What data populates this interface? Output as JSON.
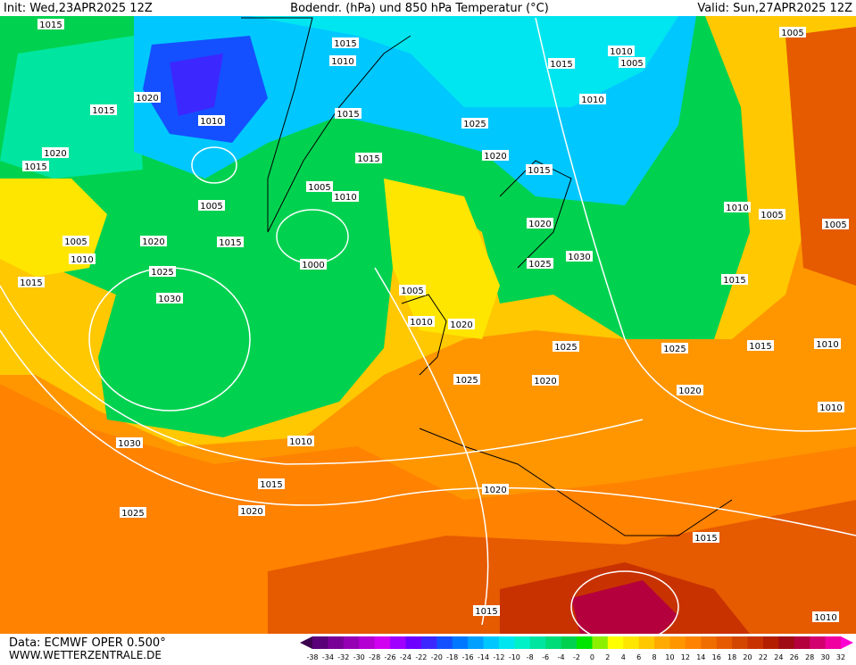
{
  "header": {
    "init": "Init: Wed,23APR2025 12Z",
    "title": "Bodendr. (hPa) und 850 hPa Temperatur (°C)",
    "valid": "Valid: Sun,27APR2025 12Z"
  },
  "isobar_labels": [
    "1015",
    "1015",
    "1010",
    "1020",
    "1015",
    "1010",
    "1015",
    "1025",
    "1020",
    "1015",
    "1015",
    "1020",
    "1015",
    "1005",
    "1010",
    "1005",
    "1010",
    "1005",
    "1005",
    "1020",
    "1005",
    "1020",
    "1015",
    "1010",
    "1030",
    "1025",
    "1000",
    "1025",
    "1015",
    "1015",
    "1005",
    "1030",
    "1010",
    "1020",
    "1025",
    "1025",
    "1015",
    "1010",
    "1025",
    "1020",
    "1020",
    "1010",
    "1030",
    "1010",
    "1015",
    "1020",
    "1025",
    "1020",
    "1015",
    "1015",
    "1010",
    "1010",
    "1005",
    "1015",
    "1005",
    "1010"
  ],
  "footer": {
    "source": "Data: ECMWF OPER 0.500°",
    "site": "WWW.WETTERZENTRALE.DE"
  },
  "legend": {
    "labels": [
      -38,
      -34,
      -32,
      -30,
      -28,
      -26,
      -24,
      -22,
      -20,
      -18,
      -16,
      -14,
      -12,
      -10,
      -8,
      -6,
      -4,
      -2,
      0,
      2,
      4,
      6,
      8,
      10,
      12,
      14,
      16,
      18,
      20,
      22,
      24,
      26,
      28,
      30,
      32
    ],
    "colors": [
      "#3c004f",
      "#5a0078",
      "#780096",
      "#9600b4",
      "#b400d2",
      "#d200f0",
      "#a000ff",
      "#6e00ff",
      "#3c28ff",
      "#1450ff",
      "#0078ff",
      "#00a0ff",
      "#00c8ff",
      "#00e6f0",
      "#00f0c8",
      "#00e6a0",
      "#00dc78",
      "#00d250",
      "#00e600",
      "#8cf000",
      "#ffff00",
      "#ffe600",
      "#ffc800",
      "#ffaa00",
      "#ff9600",
      "#ff8200",
      "#f06e00",
      "#e65a00",
      "#d24600",
      "#c83200",
      "#b41e00",
      "#a00a14",
      "#b4003c",
      "#d2006e",
      "#f000a0",
      "#ff00d2"
    ]
  }
}
